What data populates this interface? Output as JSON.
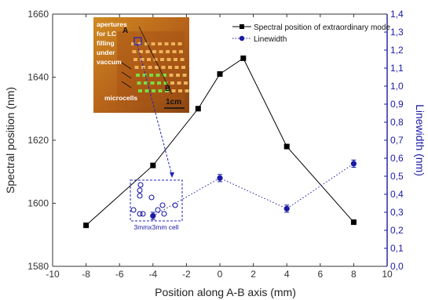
{
  "chart_data": {
    "type": "line",
    "xlabel": "Position along A-B axis (mm)",
    "ylabel_left": "Spectral position (nm)",
    "ylabel_right": "Linewidth (nm)",
    "xlim": [
      -10,
      10
    ],
    "ylim_left": [
      1580,
      1660
    ],
    "ylim_right": [
      0.0,
      1.4
    ],
    "x_ticks": [
      "-10",
      "-8",
      "-6",
      "-4",
      "-2",
      "0",
      "2",
      "4",
      "6",
      "8",
      "10"
    ],
    "y_ticks_left": [
      "1580",
      "1600",
      "1620",
      "1640",
      "1660"
    ],
    "y_ticks_right": [
      "0,0",
      "0,1",
      "0,2",
      "0,3",
      "0,4",
      "0,5",
      "0,6",
      "0,7",
      "0,8",
      "0,9",
      "1,0",
      "1,1",
      "1,2",
      "1,3",
      "1,4"
    ],
    "legend_position": "top-right",
    "series": [
      {
        "name": "Spectral position of extraordinary mode",
        "axis": "left",
        "color": "#000000",
        "marker": "square",
        "line": "solid",
        "x": [
          -8,
          -4,
          -1.3,
          0,
          1.4,
          4,
          8
        ],
        "y": [
          1593,
          1612,
          1630,
          1641,
          1646,
          1618,
          1594
        ]
      },
      {
        "name": "Linewidth",
        "axis": "right",
        "color": "#1a1aa6",
        "marker": "circle",
        "line": "dotted",
        "x": [
          -4,
          0,
          4,
          8
        ],
        "y": [
          0.28,
          0.49,
          0.32,
          0.57
        ],
        "err": [
          0.02,
          0.02,
          0.02,
          0.02
        ]
      }
    ],
    "inset": {
      "photo_labels": [
        "apertures",
        "for LC",
        "filling",
        "under",
        "vaccum",
        "microcells"
      ],
      "point_labels": [
        "A",
        "B"
      ],
      "scale_bar_label": "1cm"
    },
    "cell_caption": "3mmx3mm cell"
  }
}
